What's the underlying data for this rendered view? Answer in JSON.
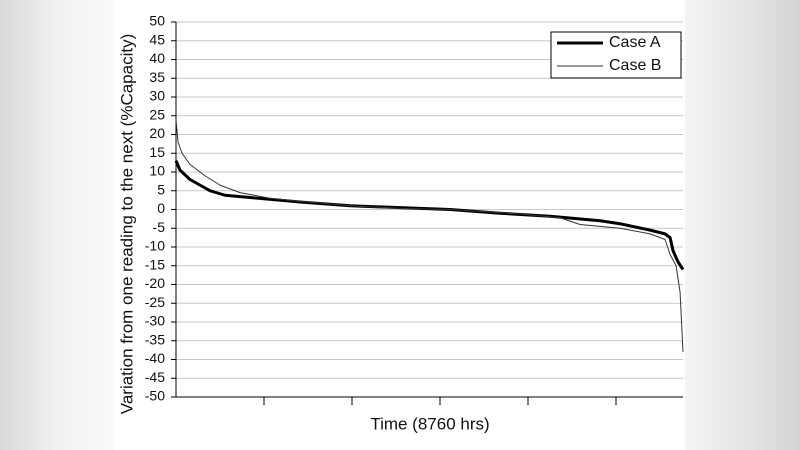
{
  "chart_data": {
    "type": "line",
    "x_label": "Time (8760 hrs)",
    "y_label": "Variation from one reading to the next (%Capacity)",
    "xlim": [
      0,
      8760
    ],
    "ylim": [
      -50,
      50
    ],
    "yticks": [
      -50,
      -45,
      -40,
      -35,
      -30,
      -25,
      -20,
      -15,
      -10,
      -5,
      0,
      5,
      10,
      15,
      20,
      25,
      30,
      35,
      40,
      45,
      50
    ],
    "grid": true,
    "legend": "top-right",
    "series": [
      {
        "name": "Case A",
        "color": "#000000",
        "x": [
          0,
          69,
          242,
          415,
          588,
          847,
          1279,
          2143,
          3007,
          3871,
          4735,
          5599,
          6463,
          7327,
          7672,
          8191,
          8450,
          8537,
          8588,
          8675,
          8760
        ],
        "values": [
          13,
          10.5,
          8,
          6.5,
          5,
          3.8,
          3.2,
          2,
          1,
          0.5,
          0,
          -1,
          -1.8,
          -3,
          -3.8,
          -5.5,
          -6.5,
          -7.5,
          -11,
          -14,
          -16
        ]
      },
      {
        "name": "Case B",
        "color": "#333333",
        "x": [
          0,
          35,
          104,
          242,
          501,
          760,
          1106,
          1624,
          2143,
          3007,
          3871,
          4735,
          5944,
          6636,
          6981,
          7672,
          8191,
          8450,
          8537,
          8640,
          8709,
          8760
        ],
        "values": [
          24,
          18,
          15,
          12,
          9,
          6.5,
          4.5,
          3,
          2.2,
          1,
          0.3,
          0,
          -1.2,
          -2.2,
          -4,
          -5,
          -6.5,
          -8,
          -12,
          -15,
          -22,
          -38
        ]
      }
    ]
  }
}
